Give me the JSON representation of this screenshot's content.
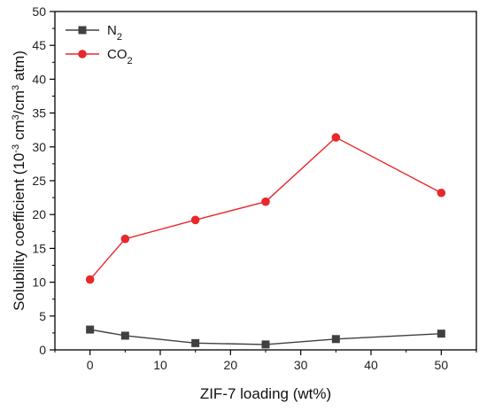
{
  "chart_data": {
    "type": "line",
    "xlabel": "ZIF-7 loading (wt%)",
    "ylabel_parts": [
      {
        "t": "Solubility coefficient (10",
        "sup": false
      },
      {
        "t": "-3",
        "sup": true
      },
      {
        "t": " cm",
        "sup": false
      },
      {
        "t": "3",
        "sup": true
      },
      {
        "t": "/cm",
        "sup": false
      },
      {
        "t": "3",
        "sup": true
      },
      {
        "t": " atm)",
        "sup": false
      }
    ],
    "xlim": [
      -5,
      55
    ],
    "ylim": [
      0,
      50
    ],
    "xticks": [
      0,
      10,
      20,
      30,
      40,
      50
    ],
    "yticks": [
      0,
      5,
      10,
      15,
      20,
      25,
      30,
      35,
      40,
      45,
      50
    ],
    "grid": false,
    "legend_position": "top-left",
    "series": [
      {
        "name_base": "N",
        "name_sub": "2",
        "marker": "square",
        "color": "#404040",
        "x": [
          0,
          5,
          15,
          25,
          35,
          50
        ],
        "y": [
          3.0,
          2.1,
          1.0,
          0.8,
          1.6,
          2.4
        ]
      },
      {
        "name_base": "CO",
        "name_sub": "2",
        "marker": "circle",
        "color": "#e8282b",
        "x": [
          0,
          5,
          15,
          25,
          35,
          50
        ],
        "y": [
          10.4,
          16.4,
          19.2,
          21.9,
          31.4,
          23.2
        ]
      }
    ]
  }
}
